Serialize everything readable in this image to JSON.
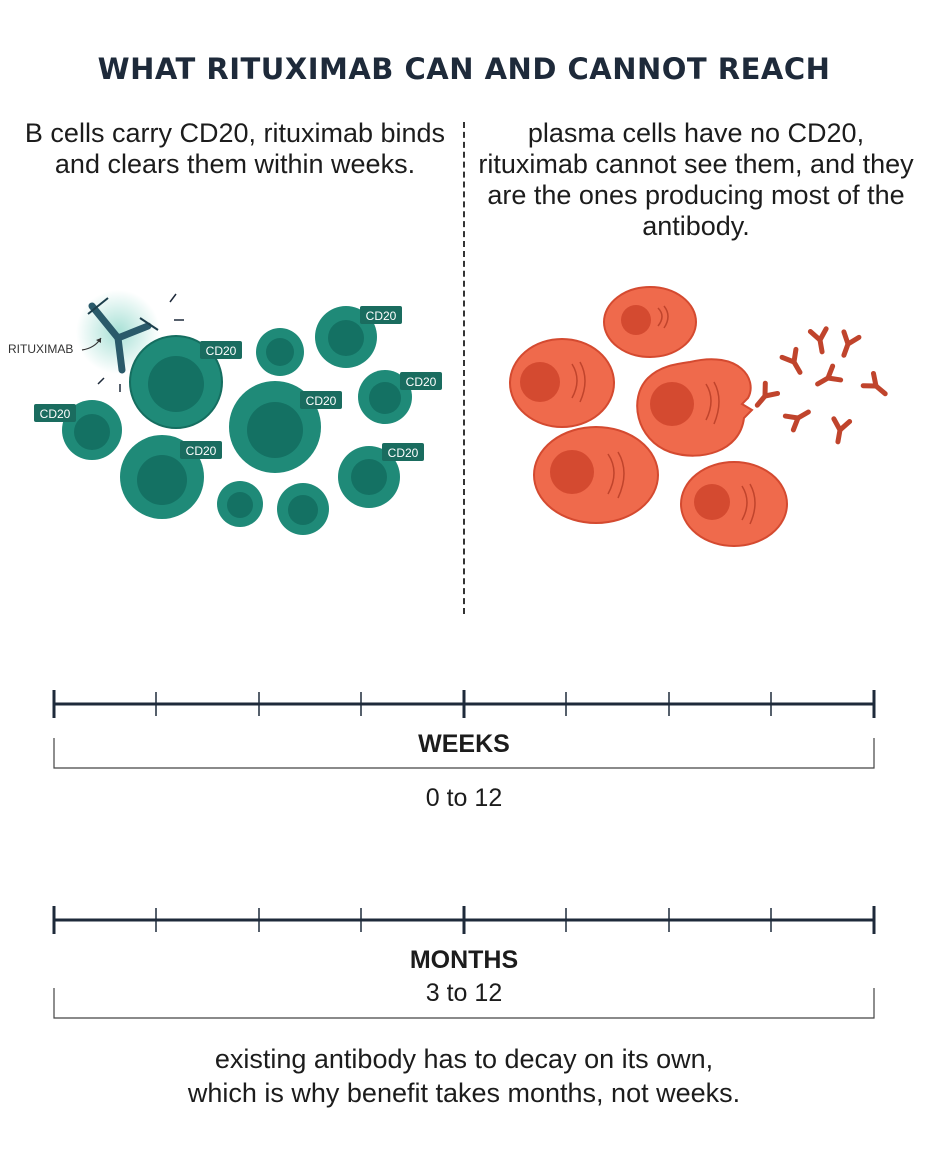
{
  "title": "WHAT RITUXIMAB CAN AND CANNOT REACH",
  "left_caption": "B cells carry CD20, rituximab binds and clears them within weeks.",
  "right_caption": "plasma cells have no CD20, rituximab cannot see them, and they are the ones producing most of the antibody.",
  "labels": {
    "rituximab": "RITUXIMAB",
    "cd20": "CD20"
  },
  "timelines": [
    {
      "name": "WEEKS",
      "range": "0 to 12"
    },
    {
      "name": "MONTHS",
      "range": "3 to 12"
    }
  ],
  "footer_line1": "existing antibody has to decay on its own,",
  "footer_line2": "which is why benefit takes months, not weeks.",
  "colors": {
    "b_cell": "#1f8a78",
    "b_cell_dark": "#11665a",
    "plasma_cell": "#ef6a4c",
    "plasma_cell_dark": "#d44a30",
    "antibody": "#c0442c",
    "rituximab": "#2a5a6a"
  }
}
